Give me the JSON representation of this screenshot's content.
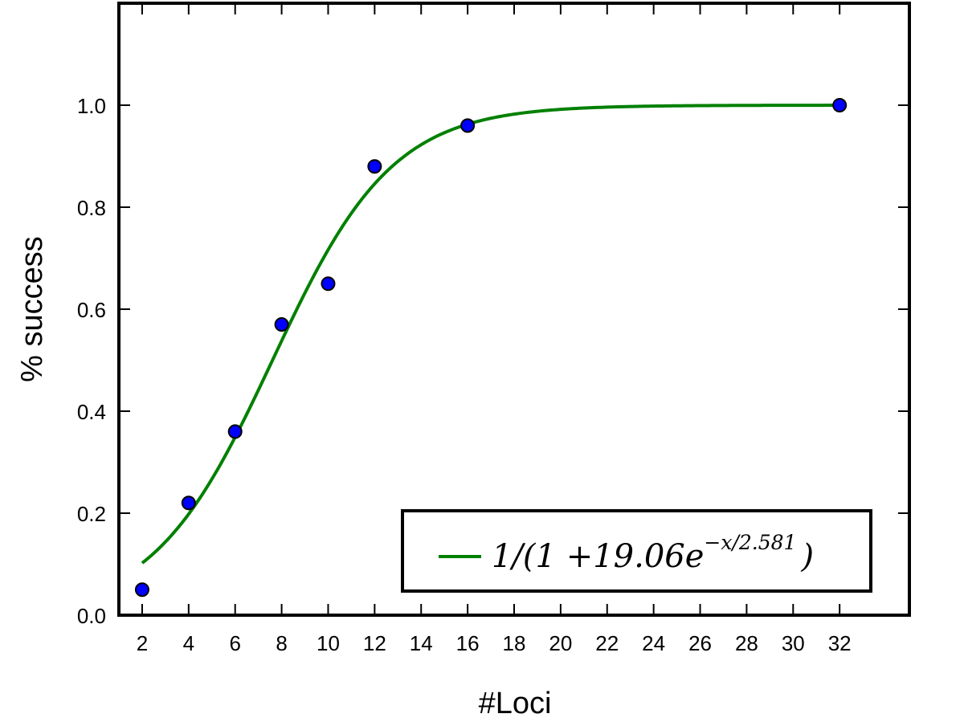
{
  "chart_data": {
    "type": "scatter",
    "title": "",
    "xlabel": "#Loci",
    "ylabel": "% success",
    "x_ticks": [
      "2",
      "4",
      "6",
      "8",
      "10",
      "12",
      "14",
      "16",
      "18",
      "20",
      "22",
      "24",
      "26",
      "28",
      "30",
      "32"
    ],
    "y_ticks": [
      "0.0",
      "0.2",
      "0.4",
      "0.6",
      "0.8",
      "1.0"
    ],
    "xlim": [
      1,
      35
    ],
    "ylim": [
      0,
      1.2
    ],
    "grid": false,
    "legend_position": "bottom-right",
    "series": [
      {
        "type": "scatter",
        "color": "#0000ff",
        "points": [
          {
            "x": "2",
            "y": 0.05
          },
          {
            "x": "4",
            "y": 0.22
          },
          {
            "x": "6",
            "y": 0.36
          },
          {
            "x": "8",
            "y": 0.57
          },
          {
            "x": "10",
            "y": 0.65
          },
          {
            "x": "12",
            "y": 0.88
          },
          {
            "x": "16",
            "y": 0.96
          },
          {
            "x": "32",
            "y": 1.0
          }
        ]
      },
      {
        "type": "line",
        "name": "1/(1+19.06e^{-x/2.581})",
        "color": "#008000",
        "formula": {
          "a": 19.06,
          "b": 2.581
        },
        "x_range": [
          "2",
          "32"
        ]
      }
    ],
    "legend": {
      "prefix": "1/(1 +19.06",
      "e": "e",
      "exponent": "−x/2.581",
      "suffix": ")"
    }
  }
}
